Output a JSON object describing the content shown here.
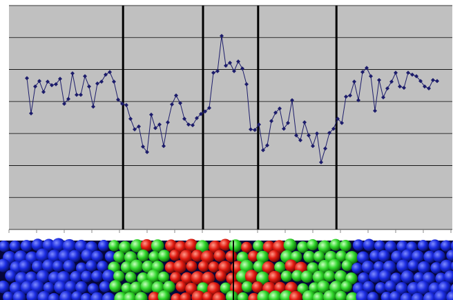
{
  "chart_data": {
    "type": "line",
    "color": "#1c1c6b",
    "background": "#c0c0c0",
    "grid": true,
    "ylim": [
      0,
      7
    ],
    "yticks": [
      0,
      1,
      2,
      3,
      4,
      5,
      6,
      7
    ],
    "vlines": [
      23.2,
      42.5,
      55.8,
      74.7
    ],
    "values": [
      4.73,
      3.63,
      4.47,
      4.64,
      4.3,
      4.62,
      4.51,
      4.54,
      4.71,
      3.93,
      4.08,
      4.88,
      4.21,
      4.21,
      4.79,
      4.47,
      3.84,
      4.56,
      4.62,
      4.84,
      4.92,
      4.62,
      4.06,
      3.93,
      3.89,
      3.46,
      3.13,
      3.22,
      2.59,
      2.42,
      3.59,
      3.17,
      3.28,
      2.61,
      3.35,
      3.91,
      4.19,
      3.95,
      3.46,
      3.28,
      3.26,
      3.48,
      3.61,
      3.69,
      3.8,
      4.9,
      4.95,
      6.05,
      5.12,
      5.21,
      4.95,
      5.25,
      5.03,
      4.54,
      3.13,
      3.11,
      3.28,
      2.48,
      2.63,
      3.39,
      3.65,
      3.78,
      3.15,
      3.33,
      4.04,
      2.94,
      2.79,
      3.35,
      2.94,
      2.61,
      3.0,
      2.1,
      2.53,
      3.02,
      3.15,
      3.46,
      3.33,
      4.15,
      4.19,
      4.62,
      4.04,
      4.92,
      5.05,
      4.79,
      3.71,
      4.67,
      4.13,
      4.41,
      4.62,
      4.9,
      4.47,
      4.43,
      4.9,
      4.84,
      4.79,
      4.64,
      4.47,
      4.41,
      4.67,
      4.64
    ]
  }
}
